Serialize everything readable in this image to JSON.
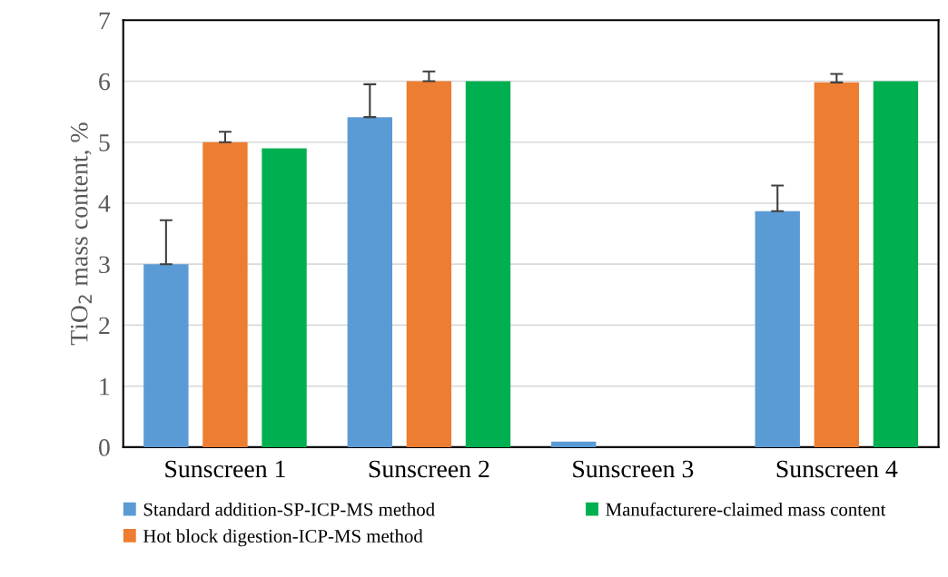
{
  "chart_data": {
    "type": "bar",
    "ylabel": "TiO$_{2}$ mass content, %",
    "categories": [
      "Sunscreen 1",
      "Sunscreen 2",
      "Sunscreen 3",
      "Sunscreen 4"
    ],
    "series": [
      {
        "name": "Standard addition-SP-ICP-MS method",
        "color": "#5b9bd5",
        "values": [
          3.0,
          5.41,
          0.09,
          3.87
        ],
        "errors": [
          [
            3.0,
            3.72
          ],
          [
            5.41,
            5.95
          ],
          null,
          [
            3.87,
            4.29
          ]
        ]
      },
      {
        "name": "Hot block digestion-ICP-MS method",
        "color": "#ed7d31",
        "values": [
          5.0,
          6.0,
          null,
          5.98
        ],
        "errors": [
          [
            5.0,
            5.17
          ],
          [
            6.0,
            6.16
          ],
          null,
          [
            5.98,
            6.12
          ]
        ]
      },
      {
        "name": "Manufacturere-claimed mass content",
        "color": "#00b050",
        "values": [
          4.9,
          6.0,
          null,
          6.0
        ]
      }
    ],
    "ylim": [
      0,
      7
    ],
    "yticks": [
      0,
      1,
      2,
      3,
      4,
      5,
      6,
      7
    ],
    "grid": "y",
    "legend": "bottom"
  }
}
